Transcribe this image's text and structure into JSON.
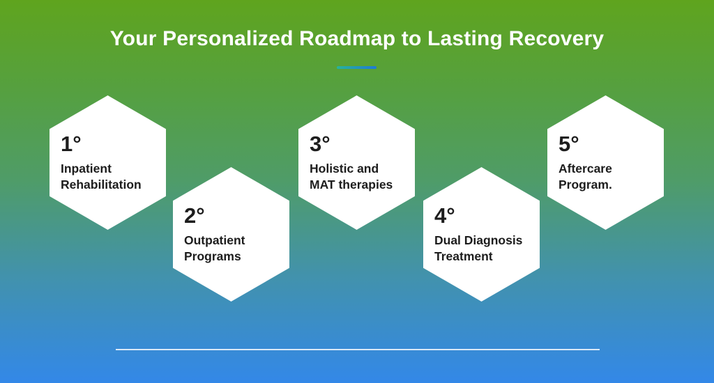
{
  "header": {
    "title": "Your Personalized Roadmap to Lasting Recovery"
  },
  "steps": [
    {
      "number": "1°",
      "label": "Inpatient\nRehabilitation"
    },
    {
      "number": "2°",
      "label": "Outpatient\nPrograms"
    },
    {
      "number": "3°",
      "label": "Holistic and\nMAT therapies"
    },
    {
      "number": "4°",
      "label": "Dual Diagnosis\nTreatment"
    },
    {
      "number": "5°",
      "label": "Aftercare\nProgram."
    }
  ],
  "colors": {
    "background_top": "#5FA41E",
    "background_bottom": "#3388E8",
    "accent_underline_left": "#27B49B",
    "accent_underline_right": "#1D79D8",
    "hexagon_fill": "#FFFFFF",
    "hexagon_text": "#1D1D1D",
    "title_text": "#FFFFFF",
    "divider": "rgba(255,255,255,0.82)"
  }
}
